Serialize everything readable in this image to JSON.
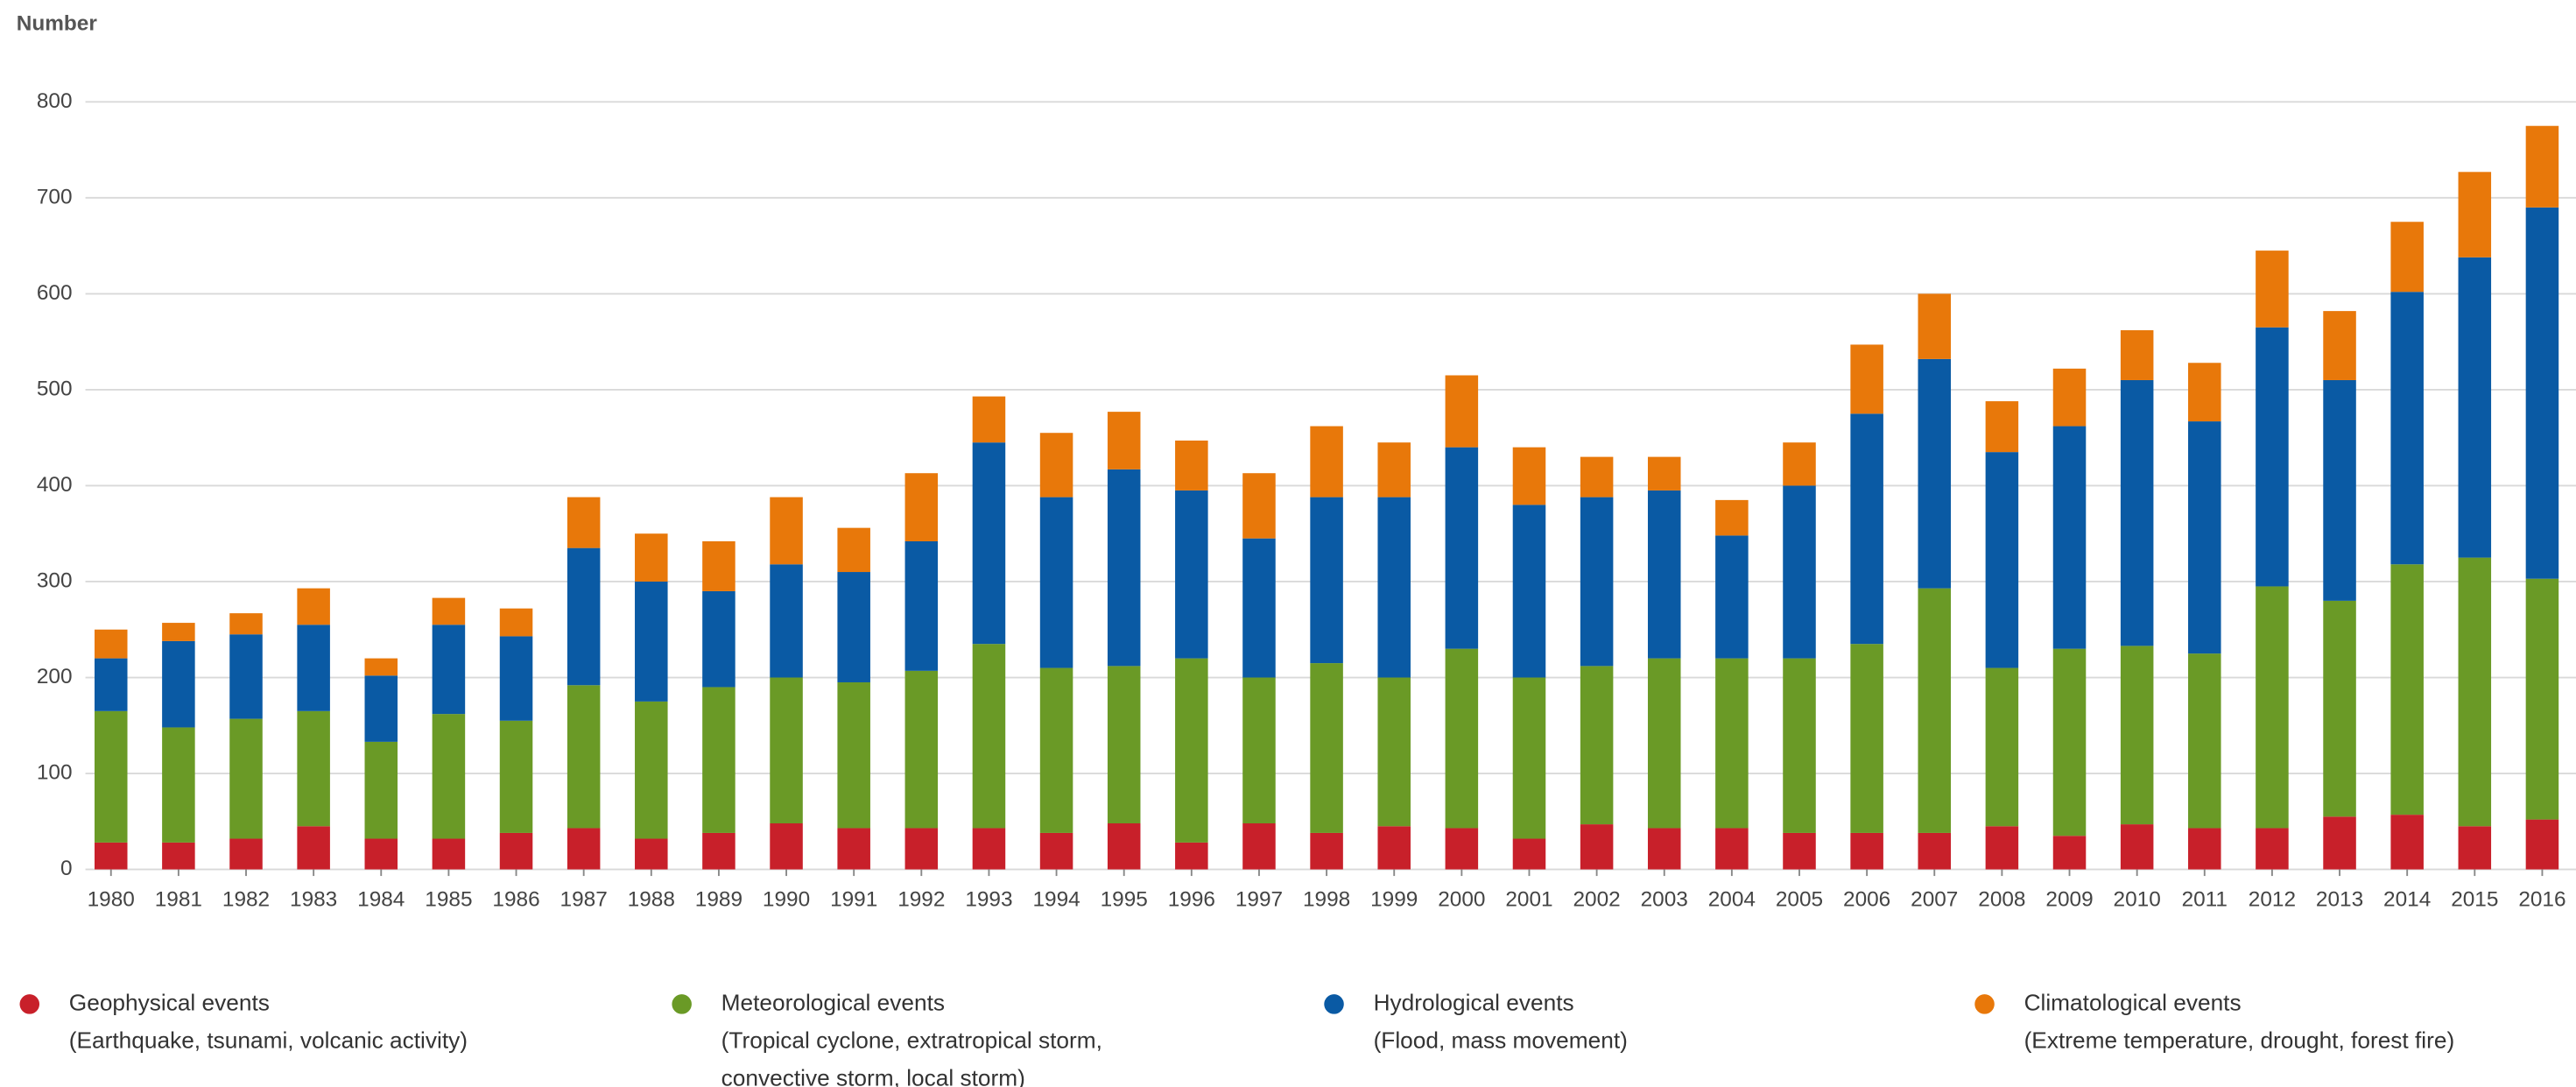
{
  "chart_data": {
    "type": "stacked_bar",
    "y_label": "Number",
    "categories": [
      "1980",
      "1981",
      "1982",
      "1983",
      "1984",
      "1985",
      "1986",
      "1987",
      "1988",
      "1989",
      "1990",
      "1991",
      "1992",
      "1993",
      "1994",
      "1995",
      "1996",
      "1997",
      "1998",
      "1999",
      "2000",
      "2001",
      "2002",
      "2003",
      "2004",
      "2005",
      "2006",
      "2007",
      "2008",
      "2009",
      "2010",
      "2011",
      "2012",
      "2013",
      "2014",
      "2015",
      "2016"
    ],
    "series": [
      {
        "name": "Geophysical events",
        "description": [
          "(Earthquake, tsunami, volcanic activity)"
        ],
        "color": "#c8202a",
        "values": [
          28,
          28,
          32,
          45,
          32,
          32,
          38,
          43,
          32,
          38,
          48,
          43,
          43,
          43,
          38,
          48,
          28,
          48,
          38,
          45,
          43,
          32,
          47,
          43,
          43,
          38,
          38,
          38,
          45,
          35,
          47,
          43,
          43,
          55,
          57,
          45,
          52
        ]
      },
      {
        "name": "Meteorological events",
        "description": [
          "(Tropical cyclone, extratropical storm,",
          "convective storm, local storm)"
        ],
        "color": "#6a9a26",
        "values": [
          137,
          120,
          125,
          120,
          101,
          130,
          117,
          149,
          143,
          152,
          152,
          152,
          164,
          192,
          172,
          164,
          192,
          152,
          177,
          155,
          187,
          168,
          165,
          177,
          177,
          182,
          197,
          255,
          165,
          195,
          186,
          182,
          252,
          225,
          261,
          280,
          251
        ]
      },
      {
        "name": "Hydrological events",
        "description": [
          "(Flood, mass movement)"
        ],
        "color": "#0a5aa4",
        "values": [
          55,
          90,
          88,
          90,
          69,
          93,
          88,
          143,
          125,
          100,
          118,
          115,
          135,
          210,
          178,
          205,
          175,
          145,
          173,
          188,
          210,
          180,
          176,
          175,
          128,
          180,
          240,
          239,
          225,
          232,
          277,
          242,
          270,
          230,
          284,
          313,
          387
        ]
      },
      {
        "name": "Climatological events",
        "description": [
          "(Extreme temperature, drought, forest fire)"
        ],
        "color": "#e8780a",
        "values": [
          30,
          19,
          22,
          38,
          18,
          28,
          29,
          53,
          50,
          52,
          70,
          46,
          71,
          48,
          67,
          60,
          52,
          68,
          74,
          57,
          75,
          60,
          42,
          35,
          37,
          45,
          72,
          68,
          53,
          60,
          52,
          61,
          80,
          72,
          73,
          89,
          85
        ]
      }
    ],
    "ylim": [
      0,
      800
    ],
    "yticks": [
      0,
      100,
      200,
      300,
      400,
      500,
      600,
      700,
      800
    ],
    "grid": true
  }
}
